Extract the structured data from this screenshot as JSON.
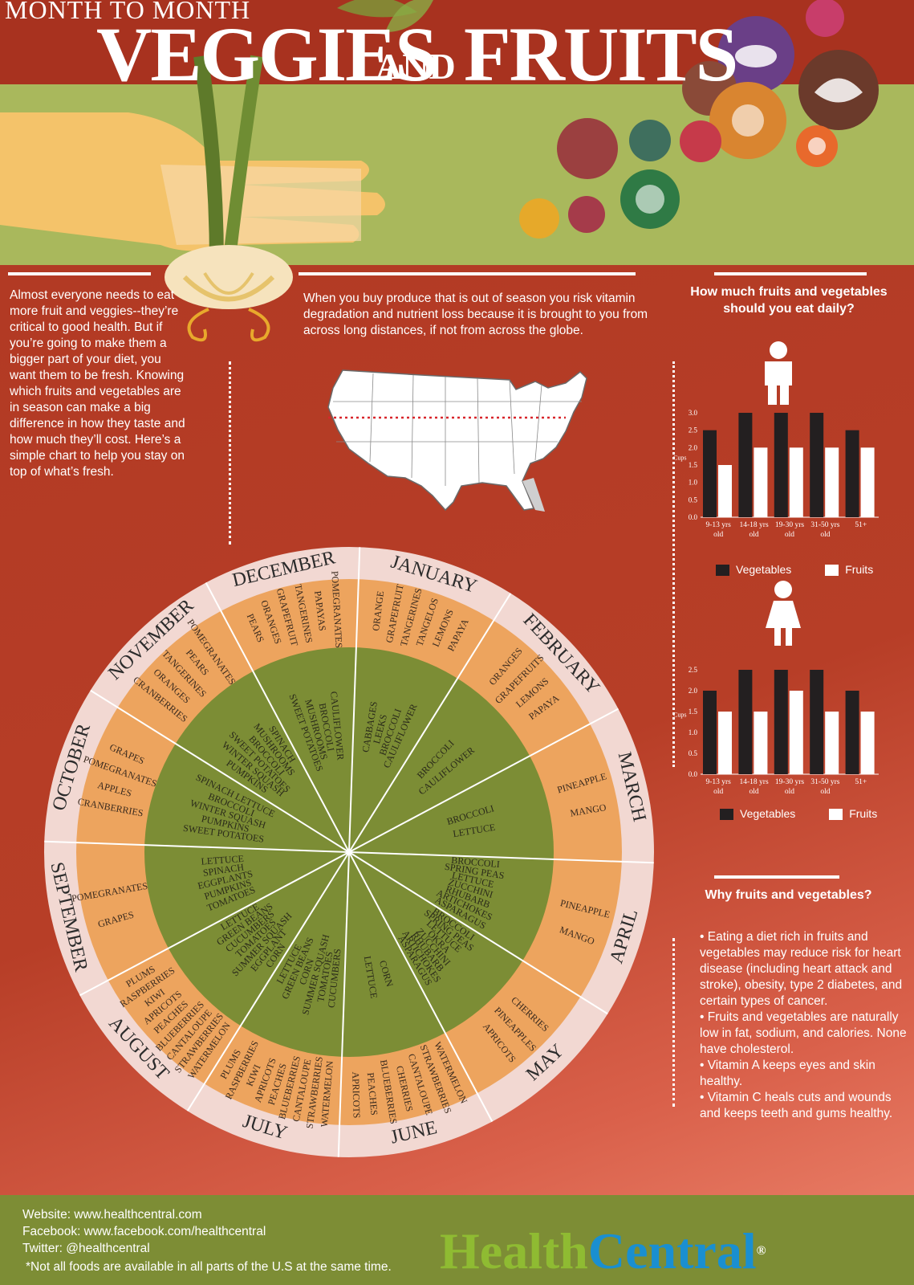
{
  "header": {
    "title_top": "MONTH TO MONTH",
    "title_veggies": "VEGGIES",
    "title_and": "AND",
    "title_fruits": "FRUITS"
  },
  "intro": {
    "left": "Almost everyone needs to eat more fruit and veggies--they’re critical to good health.  But if you’re going to make them a bigger part of your diet, you want them to be fresh. Knowing which fruits and vegetables are in season can make a big difference in how they taste and how much they’ll cost.  Here’s a simple chart to help you stay on top of what’s fresh.",
    "middle": "When you buy produce that is out of season you risk vitamin degradation and nutrient loss because it is brought to you from across long distances, if not from across the globe."
  },
  "daily_chart": {
    "title_line1": "How much fruits and vegetables",
    "title_line2": "should you eat daily?",
    "y_axis_label": "Cups",
    "legend_veg": "Vegetables",
    "legend_fruit": "Fruits",
    "colors": {
      "vegetables": "#231f20",
      "fruits": "#ffffff"
    }
  },
  "chart_data": [
    {
      "type": "bar",
      "group": "male",
      "categories": [
        "9-13 yrs old",
        "14-18 yrs old",
        "19-30 yrs old",
        "31-50 yrs old",
        "51+"
      ],
      "series": [
        {
          "name": "Vegetables",
          "values": [
            2.5,
            3.0,
            3.0,
            3.0,
            2.5
          ]
        },
        {
          "name": "Fruits",
          "values": [
            1.5,
            2.0,
            2.0,
            2.0,
            2.0
          ]
        }
      ],
      "ylabel": "Cups",
      "ylim": [
        0,
        3.0
      ],
      "yticks": [
        "0.0",
        "0.5",
        "1.0",
        "1.5",
        "2.0",
        "2.5",
        "3.0"
      ],
      "legend": "bottom"
    },
    {
      "type": "bar",
      "group": "female",
      "categories": [
        "9-13 yrs old",
        "14-18 yrs old",
        "19-30 yrs old",
        "31-50 yrs old",
        "51+"
      ],
      "series": [
        {
          "name": "Vegetables",
          "values": [
            2.0,
            2.5,
            2.5,
            2.5,
            2.0
          ]
        },
        {
          "name": "Fruits",
          "values": [
            1.5,
            1.5,
            2.0,
            1.5,
            1.5
          ]
        }
      ],
      "ylabel": "Cups",
      "ylim": [
        0,
        2.5
      ],
      "yticks": [
        "0.0",
        "0.5",
        "1.0",
        "1.5",
        "2.0",
        "2.5"
      ],
      "legend": "bottom"
    }
  ],
  "why": {
    "title": "Why fruits and vegetables?",
    "bullets": [
      "• Eating a diet rich in fruits and vegetables may reduce risk for heart disease (including heart attack and stroke), obesity, type 2 diabetes, and certain types of cancer.",
      "• Fruits and vegetables are naturally low in fat, sodium, and calories. None have cholesterol.",
      "• Vitamin A keeps eyes and skin healthy.",
      "• Vitamin C heals cuts and wounds and keeps teeth and gums healthy."
    ]
  },
  "wheel": {
    "colors": {
      "ring": "#f2d8d2",
      "fruit": "#eda45e",
      "veg": "#7c8d35",
      "line": "#ffffff"
    },
    "months": [
      {
        "name": "JANUARY",
        "fruits": [
          "ORANGE",
          "GRAPEFRUIT",
          "TANGERINES",
          "TANGELOS",
          "LEMONS",
          "PAPAYA"
        ],
        "veggies": [
          "CABBAGES",
          "LEEKS",
          "BROCCOLI",
          "CAULIFLOWER"
        ]
      },
      {
        "name": "FEBRUARY",
        "fruits": [
          "ORANGES",
          "GRAPEFRUITS",
          "LEMONS",
          "PAPAYA"
        ],
        "veggies": [
          "BROCCOLI",
          "CAULIFLOWER"
        ]
      },
      {
        "name": "MARCH",
        "fruits": [
          "PINEAPPLE",
          "MANGO"
        ],
        "veggies": [
          "BROCCOLI",
          "LETTUCE"
        ]
      },
      {
        "name": "APRIL",
        "fruits": [
          "PINEAPPLE",
          "MANGO"
        ],
        "veggies": [
          "BROCCOLI",
          "SPRING PEAS",
          "LETTUCE",
          "ZUCCHINI",
          "RHUBARB",
          "ARTICHOKES",
          "ASPARAGUS"
        ]
      },
      {
        "name": "MAY",
        "fruits": [
          "CHERRIES",
          "PINEAPPLES",
          "APRICOTS"
        ],
        "veggies": [
          "BROCCOLI",
          "SPRING PEAS",
          "LETTUCE",
          "OKRA",
          "ZUCCHINI",
          "RHUBARB",
          "ARTICHOKES",
          "ASPARAGUS"
        ]
      },
      {
        "name": "JUNE",
        "fruits": [
          "WATERMELON",
          "STRAWBERRIES",
          "CANTALOUPE",
          "CHERRIES",
          "BLUEBERRIES",
          "PEACHES",
          "APRICOTS"
        ],
        "veggies": [
          "CORN",
          "LETTUCE"
        ]
      },
      {
        "name": "JULY",
        "fruits": [
          "WATERMELON",
          "STRAWBERRIES",
          "CANTALOUPE",
          "BLUEBERRIES",
          "PEACHES",
          "APRICOTS",
          "KIWI",
          "RASPBERRIES",
          "PLUMS"
        ],
        "veggies": [
          "CUCUMBERS",
          "TOMATOES",
          "SUMMER SQUASH",
          "CORN",
          "GREEN BEANS",
          "LETTUCE"
        ]
      },
      {
        "name": "AUGUST",
        "fruits": [
          "WATERMELON",
          "STRAWBERRIES",
          "CANTALOUPE",
          "BLUEBERRIES",
          "PEACHES",
          "APRICOTS",
          "KIWI",
          "RASPBERRIES",
          "PLUMS"
        ],
        "veggies": [
          "CORN",
          "EGGPLANT",
          "SUMMER SQUASH",
          "TOMATOES",
          "CUCUMBERS",
          "GREEN BEANS",
          "LETTUCE"
        ]
      },
      {
        "name": "SEPTEMBER",
        "fruits": [
          "GRAPES",
          "POMEGRANATES"
        ],
        "veggies": [
          "TOMATOES",
          "PUMPKINS",
          "EGGPLANTS",
          "SPINACH",
          "LETTUCE"
        ]
      },
      {
        "name": "OCTOBER",
        "fruits": [
          "CRANBERRIES",
          "APPLES",
          "POMEGRANATES",
          "GRAPES"
        ],
        "veggies": [
          "SWEET POTATOES",
          "PUMPKINS",
          "WINTER SQUASH",
          "BROCCOLI",
          "SPINACH LETTUCE"
        ]
      },
      {
        "name": "NOVEMBER",
        "fruits": [
          "CRANBERRIES",
          "ORANGES",
          "TANGERINES",
          "PEARS",
          "POMEGRANATES"
        ],
        "veggies": [
          "PUMPKINS",
          "WINTER SQUASH",
          "SWEET POTATOES",
          "BROCCOLI",
          "MUSHROOMS",
          "SPINACH"
        ]
      },
      {
        "name": "DECEMBER",
        "fruits": [
          "PEARS",
          "ORANGES",
          "GRAPEFRUIT",
          "TANGERINES",
          "PAPAYAS",
          "POMEGRANATES"
        ],
        "veggies": [
          "SWEET POTATOES",
          "MUSHROOMS",
          "BROCCOLI",
          "CAULIFLOWER"
        ]
      }
    ]
  },
  "footer": {
    "website": "Website: www.healthcentral.com",
    "facebook": "Facebook: www.facebook.com/healthcentral",
    "twitter": "Twitter: @healthcentral",
    "note": "*Not all foods are available in all parts of the U.S at the same time.",
    "brand_health": "Health",
    "brand_central": "Central",
    "brand_mark": "®",
    "colors": {
      "health": "#8fbb32",
      "central": "#1a8fd0"
    }
  }
}
